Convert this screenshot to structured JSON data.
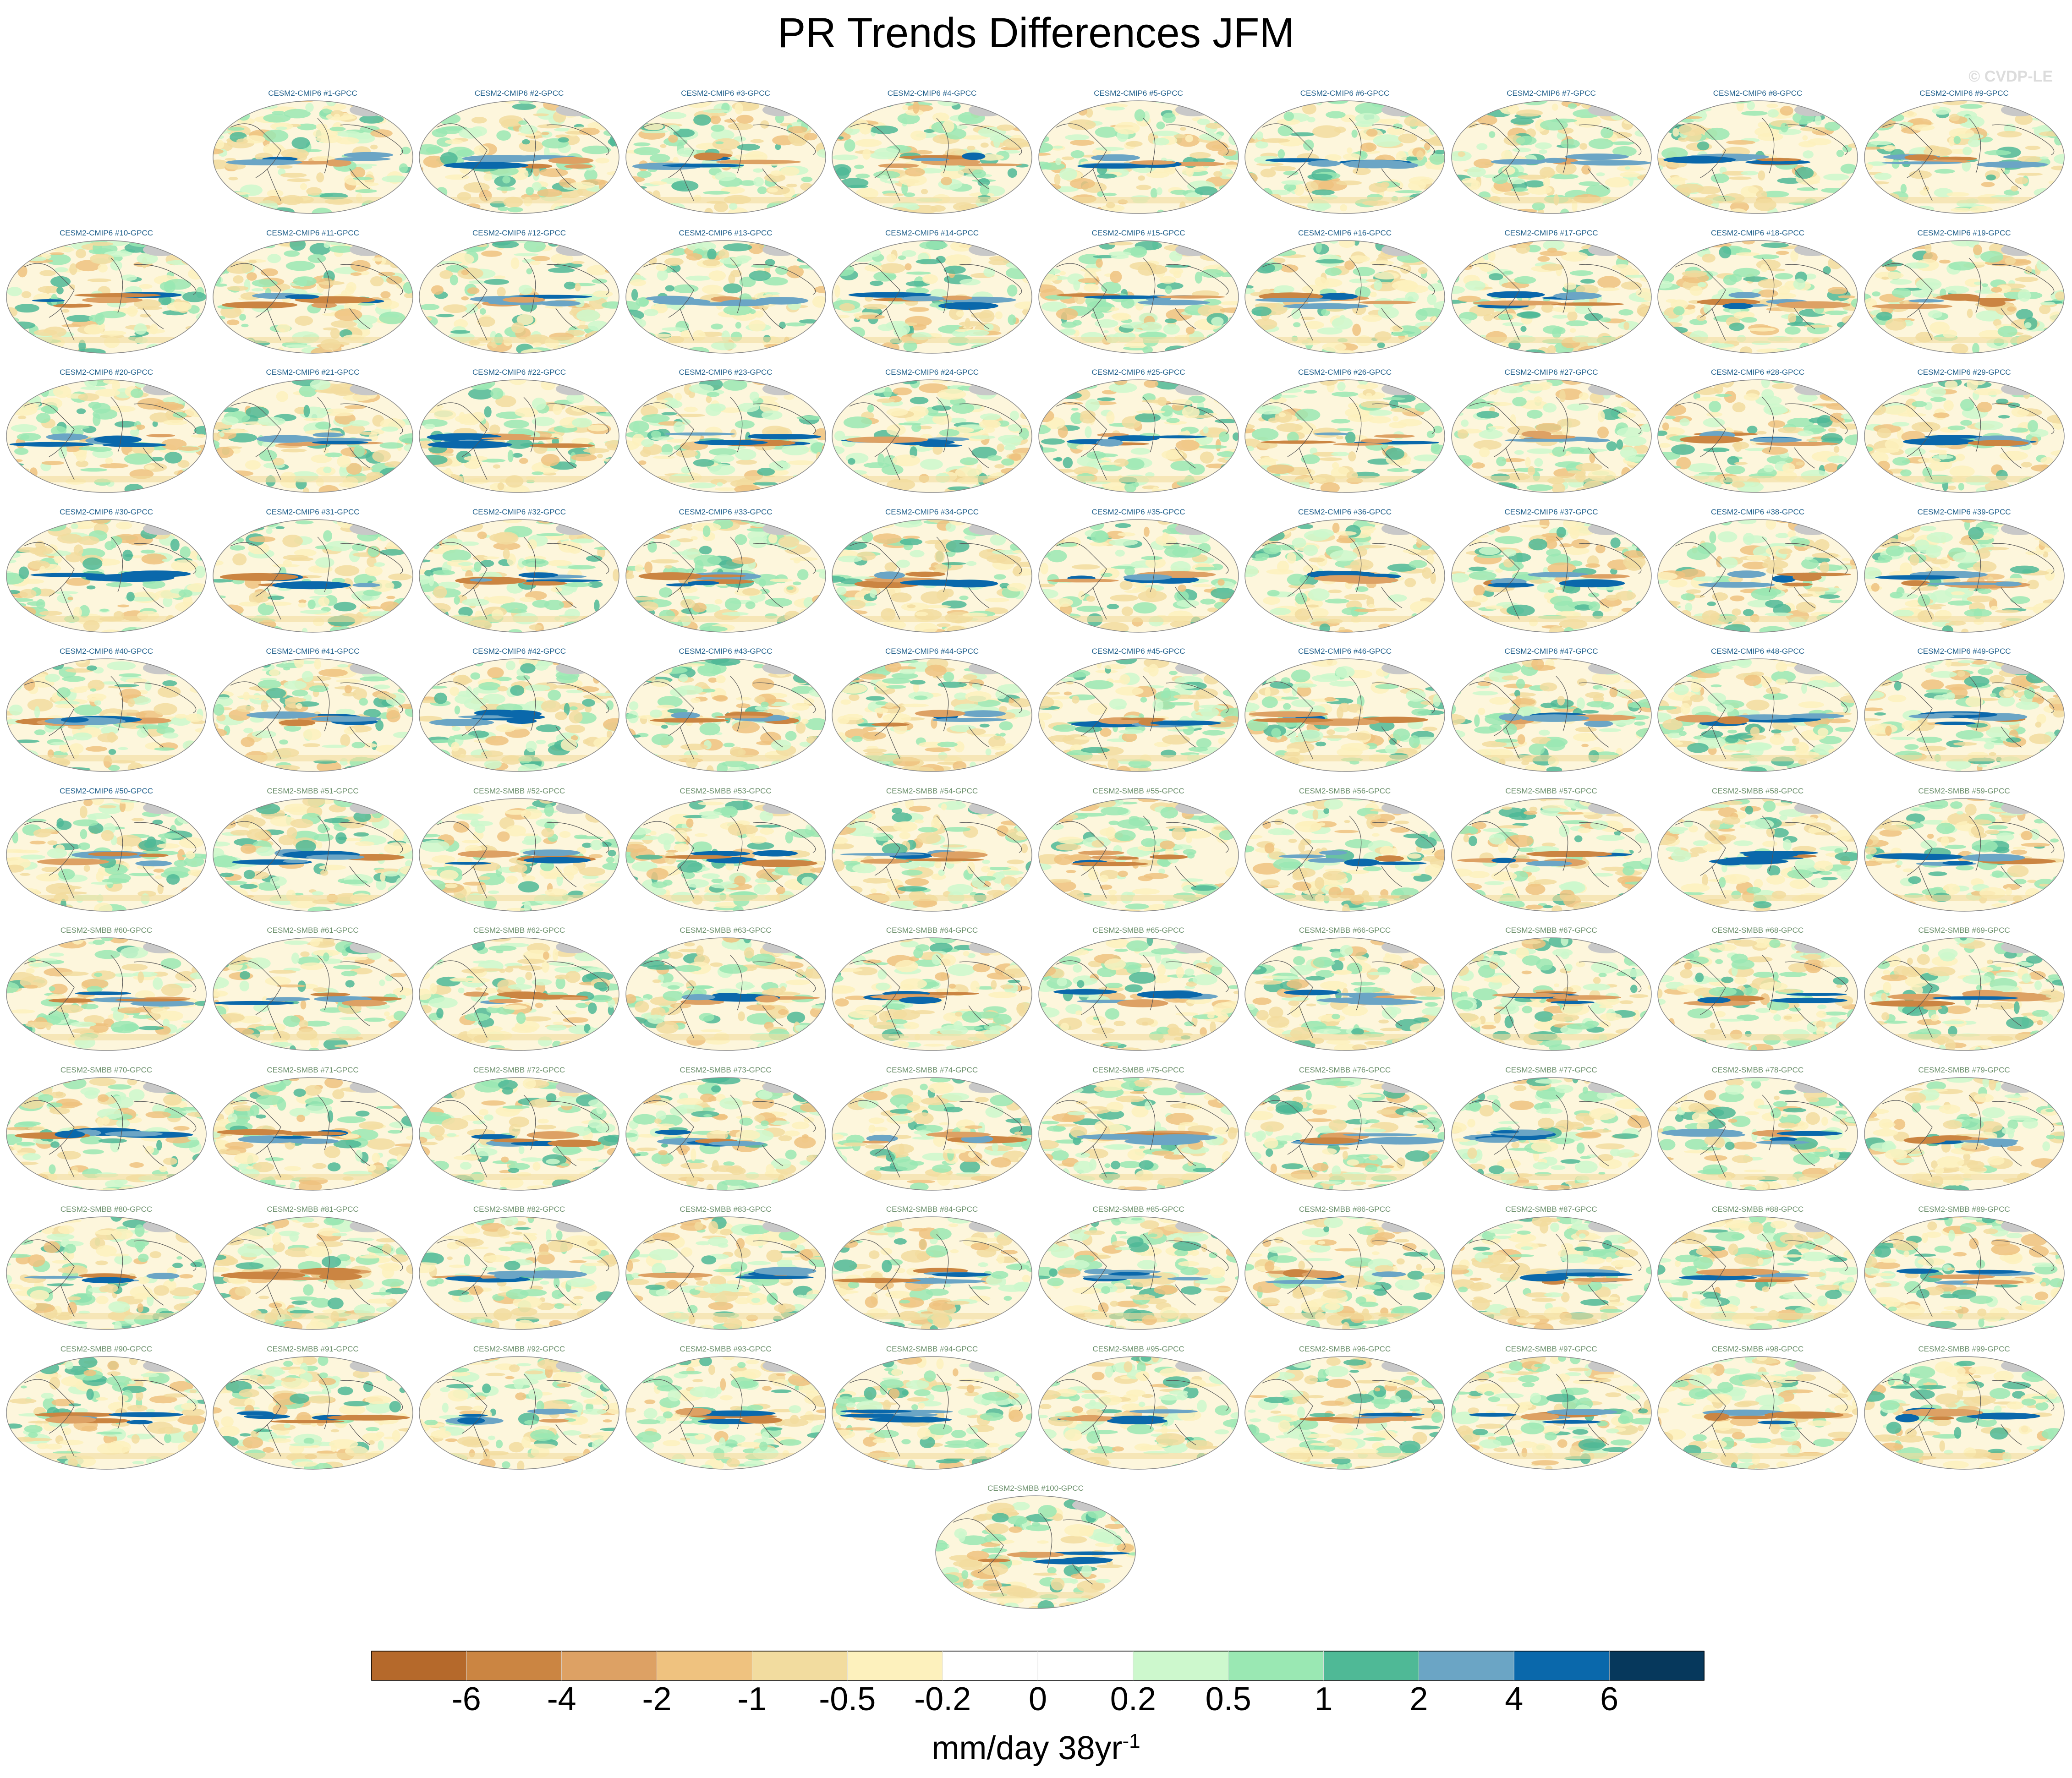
{
  "title": "PR Trends Differences JFM",
  "copyright": "© CVDP-LE",
  "units": {
    "base": "mm/day 38yr",
    "exponent": "-1"
  },
  "chart_data": {
    "type": "heatmap",
    "description_type": "map panel grid",
    "title": "PR Trends Differences JFM",
    "colorbar": {
      "labels": [
        "-6",
        "-4",
        "-2",
        "-1",
        "-0.5",
        "-0.2",
        "0",
        "0.2",
        "0.5",
        "1",
        "2",
        "4",
        "6"
      ],
      "colors": [
        "#b5692b",
        "#cb8542",
        "#dda164",
        "#efc27f",
        "#f2dc9f",
        "#fdf1bd",
        "#ffffff",
        "#ffffff",
        "#cdf8cd",
        "#9ae8b3",
        "#4fb996",
        "#6ba5c5",
        "#0a68ab",
        "#06385c"
      ]
    },
    "panels": [
      {
        "label": "CESM2-CMIP6 #1-GPCC",
        "ensemble": "CMIP6",
        "member": 1
      },
      {
        "label": "CESM2-CMIP6 #2-GPCC",
        "ensemble": "CMIP6",
        "member": 2
      },
      {
        "label": "CESM2-CMIP6 #3-GPCC",
        "ensemble": "CMIP6",
        "member": 3
      },
      {
        "label": "CESM2-CMIP6 #4-GPCC",
        "ensemble": "CMIP6",
        "member": 4
      },
      {
        "label": "CESM2-CMIP6 #5-GPCC",
        "ensemble": "CMIP6",
        "member": 5
      },
      {
        "label": "CESM2-CMIP6 #6-GPCC",
        "ensemble": "CMIP6",
        "member": 6
      },
      {
        "label": "CESM2-CMIP6 #7-GPCC",
        "ensemble": "CMIP6",
        "member": 7
      },
      {
        "label": "CESM2-CMIP6 #8-GPCC",
        "ensemble": "CMIP6",
        "member": 8
      },
      {
        "label": "CESM2-CMIP6 #9-GPCC",
        "ensemble": "CMIP6",
        "member": 9
      },
      {
        "label": "CESM2-CMIP6 #10-GPCC",
        "ensemble": "CMIP6",
        "member": 10
      },
      {
        "label": "CESM2-CMIP6 #11-GPCC",
        "ensemble": "CMIP6",
        "member": 11
      },
      {
        "label": "CESM2-CMIP6 #12-GPCC",
        "ensemble": "CMIP6",
        "member": 12
      },
      {
        "label": "CESM2-CMIP6 #13-GPCC",
        "ensemble": "CMIP6",
        "member": 13
      },
      {
        "label": "CESM2-CMIP6 #14-GPCC",
        "ensemble": "CMIP6",
        "member": 14
      },
      {
        "label": "CESM2-CMIP6 #15-GPCC",
        "ensemble": "CMIP6",
        "member": 15
      },
      {
        "label": "CESM2-CMIP6 #16-GPCC",
        "ensemble": "CMIP6",
        "member": 16
      },
      {
        "label": "CESM2-CMIP6 #17-GPCC",
        "ensemble": "CMIP6",
        "member": 17
      },
      {
        "label": "CESM2-CMIP6 #18-GPCC",
        "ensemble": "CMIP6",
        "member": 18
      },
      {
        "label": "CESM2-CMIP6 #19-GPCC",
        "ensemble": "CMIP6",
        "member": 19
      },
      {
        "label": "CESM2-CMIP6 #20-GPCC",
        "ensemble": "CMIP6",
        "member": 20
      },
      {
        "label": "CESM2-CMIP6 #21-GPCC",
        "ensemble": "CMIP6",
        "member": 21
      },
      {
        "label": "CESM2-CMIP6 #22-GPCC",
        "ensemble": "CMIP6",
        "member": 22
      },
      {
        "label": "CESM2-CMIP6 #23-GPCC",
        "ensemble": "CMIP6",
        "member": 23
      },
      {
        "label": "CESM2-CMIP6 #24-GPCC",
        "ensemble": "CMIP6",
        "member": 24
      },
      {
        "label": "CESM2-CMIP6 #25-GPCC",
        "ensemble": "CMIP6",
        "member": 25
      },
      {
        "label": "CESM2-CMIP6 #26-GPCC",
        "ensemble": "CMIP6",
        "member": 26
      },
      {
        "label": "CESM2-CMIP6 #27-GPCC",
        "ensemble": "CMIP6",
        "member": 27
      },
      {
        "label": "CESM2-CMIP6 #28-GPCC",
        "ensemble": "CMIP6",
        "member": 28
      },
      {
        "label": "CESM2-CMIP6 #29-GPCC",
        "ensemble": "CMIP6",
        "member": 29
      },
      {
        "label": "CESM2-CMIP6 #30-GPCC",
        "ensemble": "CMIP6",
        "member": 30
      },
      {
        "label": "CESM2-CMIP6 #31-GPCC",
        "ensemble": "CMIP6",
        "member": 31
      },
      {
        "label": "CESM2-CMIP6 #32-GPCC",
        "ensemble": "CMIP6",
        "member": 32
      },
      {
        "label": "CESM2-CMIP6 #33-GPCC",
        "ensemble": "CMIP6",
        "member": 33
      },
      {
        "label": "CESM2-CMIP6 #34-GPCC",
        "ensemble": "CMIP6",
        "member": 34
      },
      {
        "label": "CESM2-CMIP6 #35-GPCC",
        "ensemble": "CMIP6",
        "member": 35
      },
      {
        "label": "CESM2-CMIP6 #36-GPCC",
        "ensemble": "CMIP6",
        "member": 36
      },
      {
        "label": "CESM2-CMIP6 #37-GPCC",
        "ensemble": "CMIP6",
        "member": 37
      },
      {
        "label": "CESM2-CMIP6 #38-GPCC",
        "ensemble": "CMIP6",
        "member": 38
      },
      {
        "label": "CESM2-CMIP6 #39-GPCC",
        "ensemble": "CMIP6",
        "member": 39
      },
      {
        "label": "CESM2-CMIP6 #40-GPCC",
        "ensemble": "CMIP6",
        "member": 40
      },
      {
        "label": "CESM2-CMIP6 #41-GPCC",
        "ensemble": "CMIP6",
        "member": 41
      },
      {
        "label": "CESM2-CMIP6 #42-GPCC",
        "ensemble": "CMIP6",
        "member": 42
      },
      {
        "label": "CESM2-CMIP6 #43-GPCC",
        "ensemble": "CMIP6",
        "member": 43
      },
      {
        "label": "CESM2-CMIP6 #44-GPCC",
        "ensemble": "CMIP6",
        "member": 44
      },
      {
        "label": "CESM2-CMIP6 #45-GPCC",
        "ensemble": "CMIP6",
        "member": 45
      },
      {
        "label": "CESM2-CMIP6 #46-GPCC",
        "ensemble": "CMIP6",
        "member": 46
      },
      {
        "label": "CESM2-CMIP6 #47-GPCC",
        "ensemble": "CMIP6",
        "member": 47
      },
      {
        "label": "CESM2-CMIP6 #48-GPCC",
        "ensemble": "CMIP6",
        "member": 48
      },
      {
        "label": "CESM2-CMIP6 #49-GPCC",
        "ensemble": "CMIP6",
        "member": 49
      },
      {
        "label": "CESM2-CMIP6 #50-GPCC",
        "ensemble": "CMIP6",
        "member": 50
      },
      {
        "label": "CESM2-SMBB #51-GPCC",
        "ensemble": "SMBB",
        "member": 51
      },
      {
        "label": "CESM2-SMBB #52-GPCC",
        "ensemble": "SMBB",
        "member": 52
      },
      {
        "label": "CESM2-SMBB #53-GPCC",
        "ensemble": "SMBB",
        "member": 53
      },
      {
        "label": "CESM2-SMBB #54-GPCC",
        "ensemble": "SMBB",
        "member": 54
      },
      {
        "label": "CESM2-SMBB #55-GPCC",
        "ensemble": "SMBB",
        "member": 55
      },
      {
        "label": "CESM2-SMBB #56-GPCC",
        "ensemble": "SMBB",
        "member": 56
      },
      {
        "label": "CESM2-SMBB #57-GPCC",
        "ensemble": "SMBB",
        "member": 57
      },
      {
        "label": "CESM2-SMBB #58-GPCC",
        "ensemble": "SMBB",
        "member": 58
      },
      {
        "label": "CESM2-SMBB #59-GPCC",
        "ensemble": "SMBB",
        "member": 59
      },
      {
        "label": "CESM2-SMBB #60-GPCC",
        "ensemble": "SMBB",
        "member": 60
      },
      {
        "label": "CESM2-SMBB #61-GPCC",
        "ensemble": "SMBB",
        "member": 61
      },
      {
        "label": "CESM2-SMBB #62-GPCC",
        "ensemble": "SMBB",
        "member": 62
      },
      {
        "label": "CESM2-SMBB #63-GPCC",
        "ensemble": "SMBB",
        "member": 63
      },
      {
        "label": "CESM2-SMBB #64-GPCC",
        "ensemble": "SMBB",
        "member": 64
      },
      {
        "label": "CESM2-SMBB #65-GPCC",
        "ensemble": "SMBB",
        "member": 65
      },
      {
        "label": "CESM2-SMBB #66-GPCC",
        "ensemble": "SMBB",
        "member": 66
      },
      {
        "label": "CESM2-SMBB #67-GPCC",
        "ensemble": "SMBB",
        "member": 67
      },
      {
        "label": "CESM2-SMBB #68-GPCC",
        "ensemble": "SMBB",
        "member": 68
      },
      {
        "label": "CESM2-SMBB #69-GPCC",
        "ensemble": "SMBB",
        "member": 69
      },
      {
        "label": "CESM2-SMBB #70-GPCC",
        "ensemble": "SMBB",
        "member": 70
      },
      {
        "label": "CESM2-SMBB #71-GPCC",
        "ensemble": "SMBB",
        "member": 71
      },
      {
        "label": "CESM2-SMBB #72-GPCC",
        "ensemble": "SMBB",
        "member": 72
      },
      {
        "label": "CESM2-SMBB #73-GPCC",
        "ensemble": "SMBB",
        "member": 73
      },
      {
        "label": "CESM2-SMBB #74-GPCC",
        "ensemble": "SMBB",
        "member": 74
      },
      {
        "label": "CESM2-SMBB #75-GPCC",
        "ensemble": "SMBB",
        "member": 75
      },
      {
        "label": "CESM2-SMBB #76-GPCC",
        "ensemble": "SMBB",
        "member": 76
      },
      {
        "label": "CESM2-SMBB #77-GPCC",
        "ensemble": "SMBB",
        "member": 77
      },
      {
        "label": "CESM2-SMBB #78-GPCC",
        "ensemble": "SMBB",
        "member": 78
      },
      {
        "label": "CESM2-SMBB #79-GPCC",
        "ensemble": "SMBB",
        "member": 79
      },
      {
        "label": "CESM2-SMBB #80-GPCC",
        "ensemble": "SMBB",
        "member": 80
      },
      {
        "label": "CESM2-SMBB #81-GPCC",
        "ensemble": "SMBB",
        "member": 81
      },
      {
        "label": "CESM2-SMBB #82-GPCC",
        "ensemble": "SMBB",
        "member": 82
      },
      {
        "label": "CESM2-SMBB #83-GPCC",
        "ensemble": "SMBB",
        "member": 83
      },
      {
        "label": "CESM2-SMBB #84-GPCC",
        "ensemble": "SMBB",
        "member": 84
      },
      {
        "label": "CESM2-SMBB #85-GPCC",
        "ensemble": "SMBB",
        "member": 85
      },
      {
        "label": "CESM2-SMBB #86-GPCC",
        "ensemble": "SMBB",
        "member": 86
      },
      {
        "label": "CESM2-SMBB #87-GPCC",
        "ensemble": "SMBB",
        "member": 87
      },
      {
        "label": "CESM2-SMBB #88-GPCC",
        "ensemble": "SMBB",
        "member": 88
      },
      {
        "label": "CESM2-SMBB #89-GPCC",
        "ensemble": "SMBB",
        "member": 89
      },
      {
        "label": "CESM2-SMBB #90-GPCC",
        "ensemble": "SMBB",
        "member": 90
      },
      {
        "label": "CESM2-SMBB #91-GPCC",
        "ensemble": "SMBB",
        "member": 91
      },
      {
        "label": "CESM2-SMBB #92-GPCC",
        "ensemble": "SMBB",
        "member": 92
      },
      {
        "label": "CESM2-SMBB #93-GPCC",
        "ensemble": "SMBB",
        "member": 93
      },
      {
        "label": "CESM2-SMBB #94-GPCC",
        "ensemble": "SMBB",
        "member": 94
      },
      {
        "label": "CESM2-SMBB #95-GPCC",
        "ensemble": "SMBB",
        "member": 95
      },
      {
        "label": "CESM2-SMBB #96-GPCC",
        "ensemble": "SMBB",
        "member": 96
      },
      {
        "label": "CESM2-SMBB #97-GPCC",
        "ensemble": "SMBB",
        "member": 97
      },
      {
        "label": "CESM2-SMBB #98-GPCC",
        "ensemble": "SMBB",
        "member": 98
      },
      {
        "label": "CESM2-SMBB #99-GPCC",
        "ensemble": "SMBB",
        "member": 99
      },
      {
        "label": "CESM2-SMBB #100-GPCC",
        "ensemble": "SMBB",
        "member": 100
      }
    ],
    "title_colors": {
      "CMIP6": "#1f5f8b",
      "SMBB": "#6b8f6b"
    }
  }
}
